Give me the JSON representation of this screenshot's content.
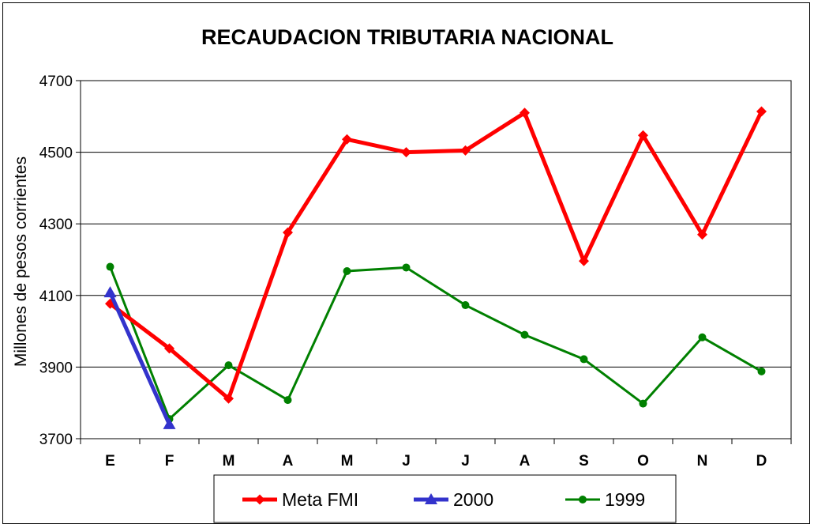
{
  "chart_data": {
    "type": "line",
    "title": "RECAUDACION TRIBUTARIA NACIONAL",
    "xlabel": "",
    "ylabel": "Millones de pesos corrientes",
    "categories": [
      "E",
      "F",
      "M",
      "A",
      "M",
      "J",
      "J",
      "A",
      "S",
      "O",
      "N",
      "D"
    ],
    "ylim": [
      3700,
      4700
    ],
    "yticks": [
      3700,
      3900,
      4100,
      4300,
      4500,
      4700
    ],
    "grid": true,
    "legend_position": "bottom",
    "series": [
      {
        "name": "Meta FMI",
        "color": "#ff0000",
        "marker": "diamond",
        "values": [
          4077,
          3952,
          3812,
          4276,
          4536,
          4500,
          4505,
          4610,
          4196,
          4547,
          4270,
          4614
        ]
      },
      {
        "name": "2000",
        "color": "#3333cc",
        "marker": "triangle",
        "values": [
          4108,
          3740,
          null,
          null,
          null,
          null,
          null,
          null,
          null,
          null,
          null,
          null
        ]
      },
      {
        "name": "1999",
        "color": "#008000",
        "marker": "circle",
        "values": [
          4180,
          3755,
          3905,
          3808,
          4168,
          4178,
          4073,
          3990,
          3922,
          3798,
          3983,
          3888
        ]
      }
    ]
  }
}
